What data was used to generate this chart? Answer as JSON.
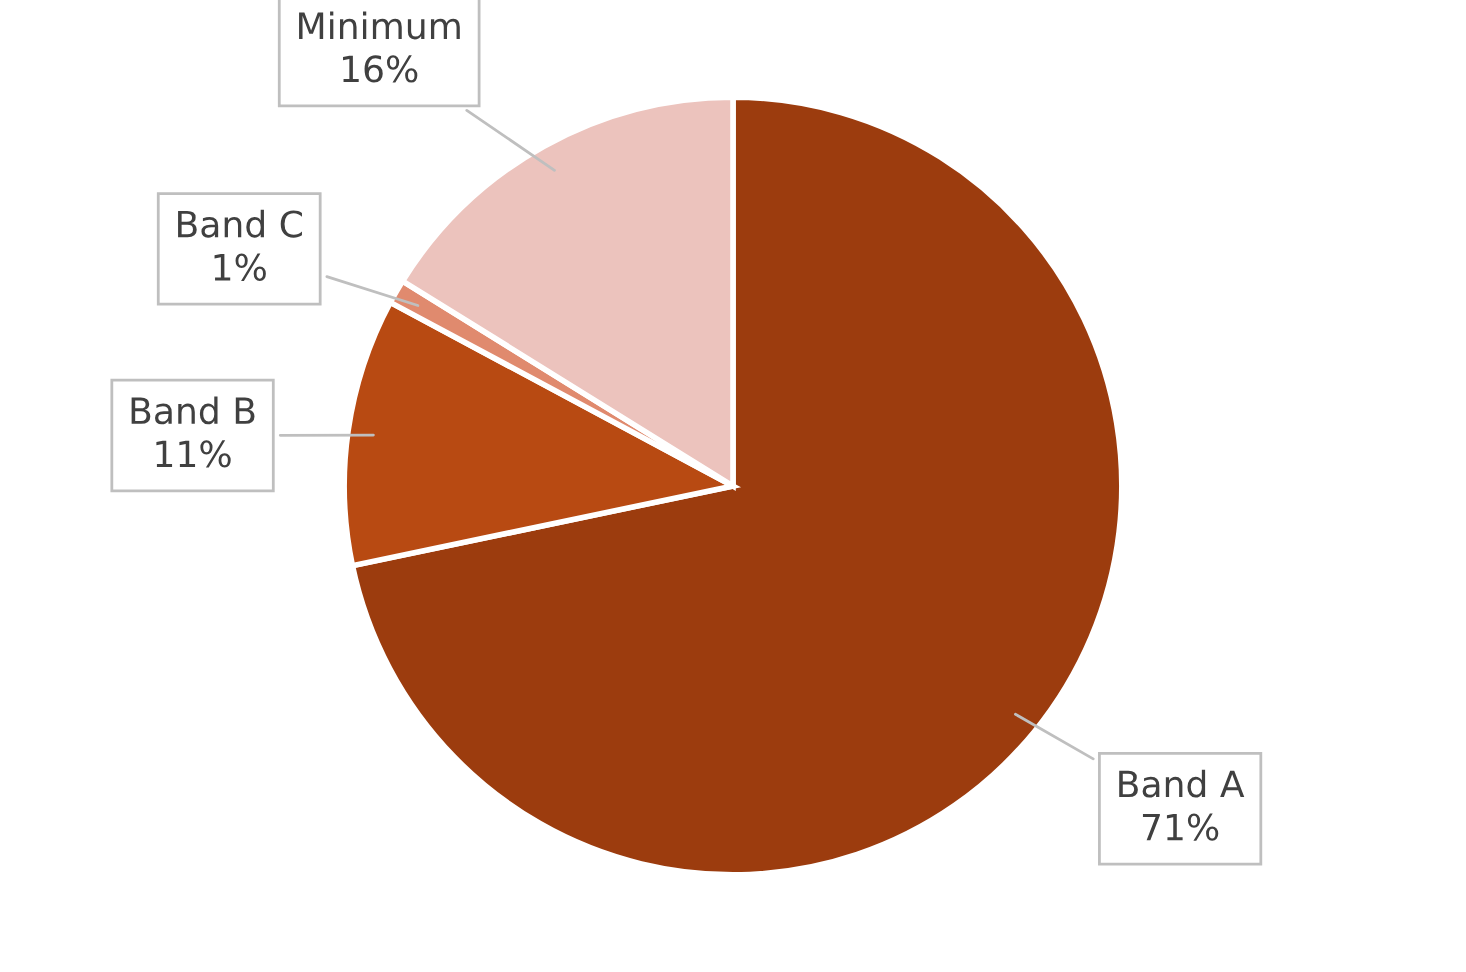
{
  "chart_data": {
    "type": "pie",
    "categories": [
      "Band A",
      "Band B",
      "Band C",
      "Minimum"
    ],
    "values": [
      71,
      11,
      1,
      16
    ],
    "value_labels": [
      "71%",
      "11%",
      "1%",
      "16%"
    ],
    "colors": [
      "#9c3c0e",
      "#b84a12",
      "#e08a6e",
      "#ecc3bd"
    ],
    "legend": false
  }
}
